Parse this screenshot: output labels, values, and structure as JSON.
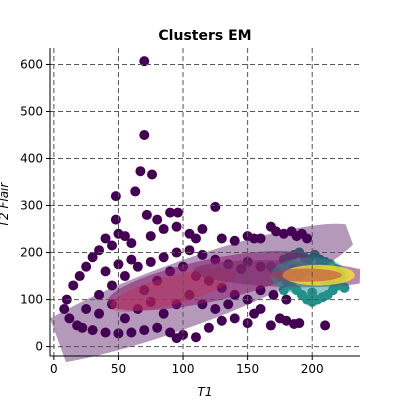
{
  "chart_data": {
    "type": "scatter",
    "title": "Clusters EM",
    "xlabel": "T1",
    "ylabel": "T2 Flair",
    "xlim": [
      -3,
      237
    ],
    "ylim": [
      -20,
      635
    ],
    "xticks": [
      0,
      50,
      100,
      150,
      200
    ],
    "yticks": [
      0,
      100,
      200,
      300,
      400,
      500,
      600
    ],
    "grid": true,
    "grid_style": "dashed",
    "legend": "none",
    "point_colors": [
      "#440154",
      "#21918c",
      "#fde725"
    ],
    "ellipse_colors": [
      "#440154",
      "#8b1a6b",
      "#c0304a",
      "#21918c",
      "#fde725"
    ],
    "clusters": [
      {
        "color": "#440154",
        "points": [
          [
            70,
            607
          ],
          [
            70,
            450
          ],
          [
            67,
            373
          ],
          [
            76,
            366
          ],
          [
            48,
            320
          ],
          [
            63,
            330
          ],
          [
            125,
            297
          ],
          [
            90,
            285
          ],
          [
            96,
            285
          ],
          [
            72,
            280
          ],
          [
            80,
            270
          ],
          [
            48,
            270
          ],
          [
            50,
            240
          ],
          [
            55,
            235
          ],
          [
            40,
            230
          ],
          [
            35,
            205
          ],
          [
            45,
            215
          ],
          [
            60,
            220
          ],
          [
            75,
            235
          ],
          [
            85,
            250
          ],
          [
            95,
            255
          ],
          [
            105,
            240
          ],
          [
            115,
            250
          ],
          [
            110,
            230
          ],
          [
            130,
            230
          ],
          [
            140,
            225
          ],
          [
            150,
            235
          ],
          [
            155,
            230
          ],
          [
            160,
            230
          ],
          [
            168,
            255
          ],
          [
            172,
            245
          ],
          [
            178,
            240
          ],
          [
            184,
            245
          ],
          [
            188,
            235
          ],
          [
            192,
            240
          ],
          [
            196,
            230
          ],
          [
            30,
            190
          ],
          [
            25,
            170
          ],
          [
            20,
            150
          ],
          [
            15,
            130
          ],
          [
            10,
            100
          ],
          [
            8,
            80
          ],
          [
            12,
            60
          ],
          [
            18,
            45
          ],
          [
            22,
            40
          ],
          [
            30,
            35
          ],
          [
            40,
            30
          ],
          [
            50,
            28
          ],
          [
            60,
            30
          ],
          [
            70,
            35
          ],
          [
            80,
            40
          ],
          [
            90,
            30
          ],
          [
            100,
            25
          ],
          [
            110,
            20
          ],
          [
            95,
            18
          ],
          [
            120,
            40
          ],
          [
            130,
            55
          ],
          [
            140,
            60
          ],
          [
            150,
            50
          ],
          [
            155,
            70
          ],
          [
            160,
            80
          ],
          [
            168,
            45
          ],
          [
            175,
            60
          ],
          [
            180,
            55
          ],
          [
            186,
            48
          ],
          [
            190,
            50
          ],
          [
            210,
            45
          ],
          [
            35,
            110
          ],
          [
            45,
            130
          ],
          [
            55,
            150
          ],
          [
            65,
            170
          ],
          [
            75,
            180
          ],
          [
            85,
            190
          ],
          [
            95,
            200
          ],
          [
            105,
            205
          ],
          [
            115,
            195
          ],
          [
            125,
            185
          ],
          [
            135,
            175
          ],
          [
            145,
            165
          ],
          [
            150,
            180
          ],
          [
            160,
            170
          ],
          [
            40,
            160
          ],
          [
            50,
            175
          ],
          [
            60,
            185
          ],
          [
            70,
            120
          ],
          [
            80,
            140
          ],
          [
            90,
            160
          ],
          [
            100,
            170
          ],
          [
            110,
            150
          ],
          [
            120,
            140
          ],
          [
            130,
            125
          ],
          [
            140,
            110
          ],
          [
            150,
            100
          ],
          [
            160,
            120
          ],
          [
            170,
            110
          ],
          [
            180,
            100
          ],
          [
            25,
            80
          ],
          [
            35,
            70
          ],
          [
            45,
            90
          ],
          [
            55,
            60
          ],
          [
            65,
            80
          ],
          [
            75,
            95
          ],
          [
            85,
            70
          ],
          [
            95,
            90
          ],
          [
            105,
            110
          ],
          [
            115,
            90
          ],
          [
            125,
            80
          ],
          [
            135,
            90
          ]
        ]
      },
      {
        "color": "#21918c",
        "points": [
          [
            178,
            185
          ],
          [
            182,
            190
          ],
          [
            186,
            195
          ],
          [
            190,
            200
          ],
          [
            194,
            190
          ],
          [
            198,
            185
          ],
          [
            202,
            195
          ],
          [
            206,
            185
          ],
          [
            210,
            180
          ],
          [
            214,
            175
          ],
          [
            218,
            165
          ],
          [
            222,
            150
          ],
          [
            220,
            130
          ],
          [
            216,
            120
          ],
          [
            212,
            110
          ],
          [
            208,
            105
          ],
          [
            204,
            100
          ],
          [
            200,
            95
          ],
          [
            196,
            100
          ],
          [
            192,
            110
          ],
          [
            188,
            120
          ],
          [
            184,
            130
          ],
          [
            180,
            140
          ],
          [
            176,
            150
          ],
          [
            172,
            160
          ],
          [
            168,
            170
          ],
          [
            185,
            165
          ],
          [
            195,
            160
          ],
          [
            205,
            170
          ],
          [
            215,
            140
          ],
          [
            225,
            125
          ],
          [
            200,
            115
          ],
          [
            190,
            150
          ],
          [
            178,
            120
          ],
          [
            210,
            140
          ]
        ]
      },
      {
        "color": "#fde725",
        "points": [
          [
            205,
            160
          ],
          [
            212,
            155
          ],
          [
            218,
            150
          ],
          [
            208,
            148
          ],
          [
            215,
            165
          ]
        ]
      }
    ],
    "ellipses": [
      {
        "color": "#440154",
        "opacity": 0.4,
        "cx": 100,
        "cy": 110,
        "rx": 145,
        "ry": 70,
        "angle": 20
      },
      {
        "color": "#8b1a6b",
        "opacity": 0.55,
        "cx": 120,
        "cy": 140,
        "rx": 80,
        "ry": 45,
        "angle": 12
      },
      {
        "color": "#c0304a",
        "opacity": 0.4,
        "cx": 92,
        "cy": 120,
        "rx": 50,
        "ry": 30,
        "angle": 15
      },
      {
        "color": "#7a2a6a",
        "opacity": 0.55,
        "cx": 178,
        "cy": 155,
        "rx": 70,
        "ry": 28,
        "angle": -2
      },
      {
        "color": "#21918c",
        "opacity": 0.5,
        "cx": 198,
        "cy": 150,
        "rx": 30,
        "ry": 40,
        "angle": 0
      },
      {
        "color": "#fde725",
        "opacity": 0.75,
        "cx": 205,
        "cy": 152,
        "rx": 28,
        "ry": 22,
        "angle": 0
      },
      {
        "color": "#c0304a",
        "opacity": 0.5,
        "cx": 195,
        "cy": 152,
        "rx": 28,
        "ry": 14,
        "angle": 0
      }
    ]
  }
}
